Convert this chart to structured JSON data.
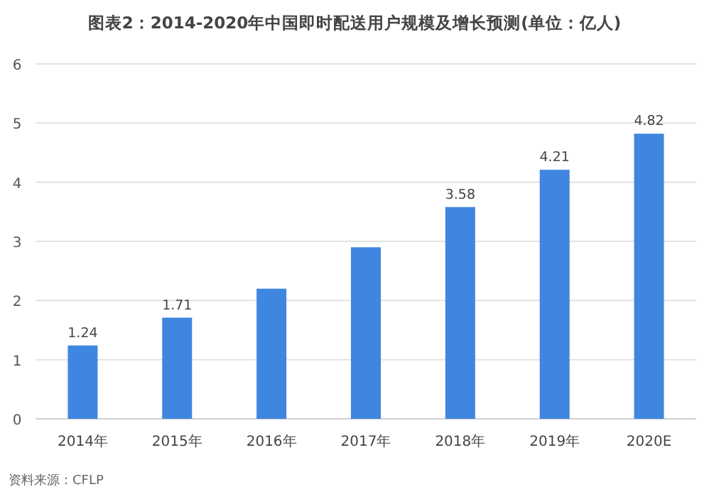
{
  "chart_data": {
    "type": "bar",
    "title": "图表2：2014-2020年中国即时配送用户规模及增长预测(单位：亿人)",
    "categories": [
      "2014年",
      "2015年",
      "2016年",
      "2017年",
      "2018年",
      "2019年",
      "2020E"
    ],
    "values": [
      1.24,
      1.71,
      2.2,
      2.9,
      3.58,
      4.21,
      4.82
    ],
    "value_labels": [
      "1.24",
      "1.71",
      null,
      null,
      "3.58",
      "4.21",
      "4.82"
    ],
    "color": "#3f86e0",
    "ylim": [
      0,
      6
    ],
    "yticks": [
      0,
      1,
      2,
      3,
      4,
      5,
      6
    ],
    "grid": "y",
    "annotations": [
      "资料来源：CFLP"
    ]
  }
}
